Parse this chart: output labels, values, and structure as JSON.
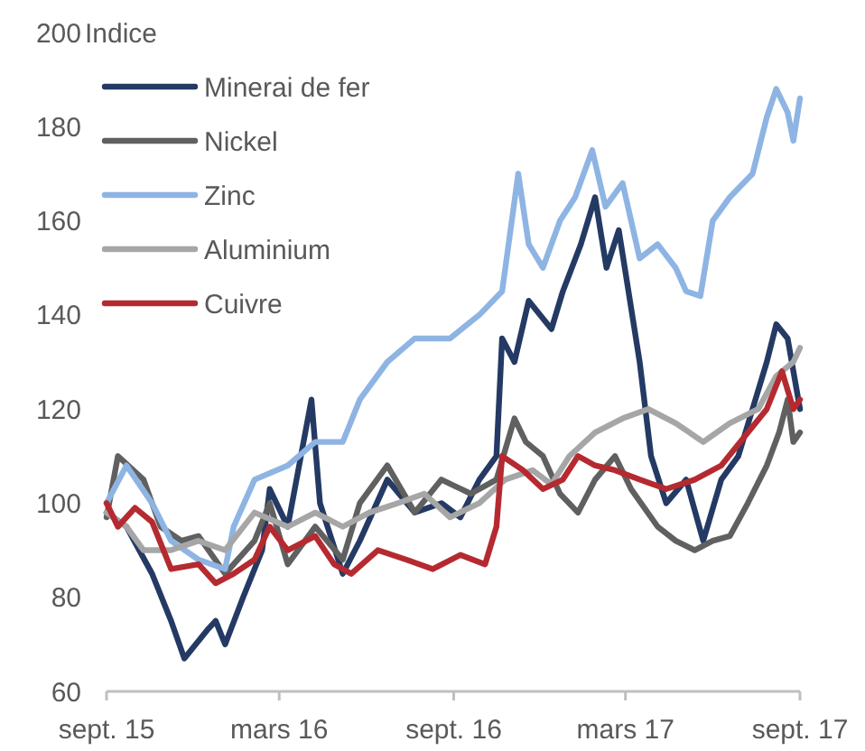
{
  "chart_data": {
    "type": "line",
    "ylabel": "Indice",
    "xlim": [
      "2015-09-01",
      "2017-09-01"
    ],
    "xticks": [
      {
        "value": "2015-09-01",
        "label": "sept. 15"
      },
      {
        "value": "2016-03-01",
        "label": "mars 16"
      },
      {
        "value": "2016-09-01",
        "label": "sept. 16"
      },
      {
        "value": "2017-03-01",
        "label": "mars 17"
      },
      {
        "value": "2017-09-01",
        "label": "sept. 17"
      }
    ],
    "ylim": [
      60,
      200
    ],
    "yticks": [
      60,
      80,
      100,
      120,
      140,
      160,
      180,
      200
    ],
    "grid": false,
    "legend": "top left",
    "line_style": "solid",
    "series": [
      {
        "name": "Minerai de fer",
        "color": "#243a64",
        "x": [
          "2015-09-01",
          "2015-09-22",
          "2015-10-19",
          "2015-11-08",
          "2015-11-22",
          "2015-12-16",
          "2015-12-25",
          "2016-01-04",
          "2016-01-23",
          "2016-02-12",
          "2016-02-20",
          "2016-03-10",
          "2016-04-04",
          "2016-04-13",
          "2016-05-07",
          "2016-05-25",
          "2016-06-23",
          "2016-07-22",
          "2016-08-19",
          "2016-09-08",
          "2016-09-28",
          "2016-10-16",
          "2016-10-22",
          "2016-11-04",
          "2016-11-19",
          "2016-12-13",
          "2016-12-25",
          "2017-01-13",
          "2017-01-28",
          "2017-02-09",
          "2017-02-22",
          "2017-03-16",
          "2017-03-22",
          "2017-03-28",
          "2017-04-13",
          "2017-05-04",
          "2017-05-22",
          "2017-06-10",
          "2017-06-28",
          "2017-07-13",
          "2017-07-28",
          "2017-08-07",
          "2017-08-19",
          "2017-09-01"
        ],
        "values": [
          98,
          95,
          85,
          75,
          67,
          73,
          75,
          70,
          80,
          90,
          103,
          95,
          122,
          100,
          85,
          92,
          105,
          98,
          100,
          97,
          105,
          110,
          135,
          130,
          143,
          137,
          145,
          155,
          165,
          150,
          158,
          130,
          120,
          110,
          100,
          105,
          92,
          105,
          110,
          120,
          130,
          138,
          135,
          120
        ]
      },
      {
        "name": "Nickel",
        "color": "#606060",
        "x": [
          "2015-09-01",
          "2015-09-13",
          "2015-10-10",
          "2015-10-28",
          "2015-11-19",
          "2015-12-07",
          "2016-01-04",
          "2016-02-04",
          "2016-02-20",
          "2016-03-10",
          "2016-04-08",
          "2016-05-07",
          "2016-05-25",
          "2016-06-23",
          "2016-07-22",
          "2016-08-19",
          "2016-09-19",
          "2016-10-16",
          "2016-11-04",
          "2016-11-16",
          "2016-12-04",
          "2016-12-22",
          "2017-01-10",
          "2017-01-28",
          "2017-02-18",
          "2017-03-07",
          "2017-04-04",
          "2017-04-23",
          "2017-05-13",
          "2017-06-01",
          "2017-06-19",
          "2017-07-08",
          "2017-07-28",
          "2017-08-10",
          "2017-08-19",
          "2017-08-25",
          "2017-09-01"
        ],
        "values": [
          97,
          110,
          105,
          95,
          92,
          93,
          85,
          92,
          100,
          87,
          95,
          88,
          100,
          108,
          98,
          105,
          102,
          105,
          118,
          113,
          110,
          102,
          98,
          105,
          110,
          103,
          95,
          92,
          90,
          92,
          93,
          100,
          108,
          115,
          122,
          113,
          115
        ]
      },
      {
        "name": "Zinc",
        "color": "#8eb4e3",
        "x": [
          "2015-09-01",
          "2015-09-22",
          "2015-10-19",
          "2015-11-08",
          "2015-12-07",
          "2016-01-04",
          "2016-01-13",
          "2016-02-04",
          "2016-03-10",
          "2016-04-08",
          "2016-05-07",
          "2016-05-25",
          "2016-06-23",
          "2016-07-22",
          "2016-08-28",
          "2016-09-28",
          "2016-10-22",
          "2016-11-08",
          "2016-11-19",
          "2016-12-04",
          "2016-12-22",
          "2017-01-07",
          "2017-01-25",
          "2017-02-08",
          "2017-02-26",
          "2017-03-16",
          "2017-04-04",
          "2017-04-23",
          "2017-05-04",
          "2017-05-19",
          "2017-06-01",
          "2017-06-19",
          "2017-07-13",
          "2017-07-28",
          "2017-08-07",
          "2017-08-19",
          "2017-08-25",
          "2017-09-01"
        ],
        "values": [
          100,
          108,
          100,
          92,
          88,
          86,
          95,
          105,
          108,
          113,
          113,
          122,
          130,
          135,
          135,
          140,
          145,
          170,
          155,
          150,
          160,
          165,
          175,
          163,
          168,
          152,
          155,
          150,
          145,
          144,
          160,
          165,
          170,
          182,
          188,
          183,
          177,
          186
        ]
      },
      {
        "name": "Aluminium",
        "color": "#a6a6a6",
        "x": [
          "2015-09-01",
          "2015-09-22",
          "2015-10-10",
          "2015-11-08",
          "2015-12-07",
          "2016-01-04",
          "2016-02-04",
          "2016-03-10",
          "2016-04-08",
          "2016-05-07",
          "2016-06-04",
          "2016-07-04",
          "2016-08-01",
          "2016-08-28",
          "2016-09-28",
          "2016-10-25",
          "2016-11-23",
          "2016-12-13",
          "2017-01-01",
          "2017-01-28",
          "2017-02-26",
          "2017-03-25",
          "2017-04-23",
          "2017-05-22",
          "2017-06-19",
          "2017-07-19",
          "2017-08-07",
          "2017-08-25",
          "2017-09-01"
        ],
        "values": [
          98,
          95,
          90,
          90,
          92,
          90,
          98,
          95,
          98,
          95,
          98,
          100,
          102,
          97,
          100,
          105,
          107,
          104,
          110,
          115,
          118,
          120,
          117,
          113,
          117,
          120,
          127,
          130,
          133
        ]
      },
      {
        "name": "Cuivre",
        "color": "#b52a30",
        "x": [
          "2015-09-01",
          "2015-09-13",
          "2015-10-01",
          "2015-10-19",
          "2015-11-08",
          "2015-12-07",
          "2015-12-25",
          "2016-01-13",
          "2016-02-04",
          "2016-02-20",
          "2016-03-10",
          "2016-04-08",
          "2016-04-28",
          "2016-05-16",
          "2016-06-13",
          "2016-07-13",
          "2016-08-10",
          "2016-09-08",
          "2016-10-04",
          "2016-10-16",
          "2016-10-22",
          "2016-11-13",
          "2016-12-04",
          "2016-12-25",
          "2017-01-10",
          "2017-01-28",
          "2017-02-18",
          "2017-03-16",
          "2017-04-13",
          "2017-05-13",
          "2017-06-10",
          "2017-07-08",
          "2017-07-28",
          "2017-08-13",
          "2017-08-25",
          "2017-09-01"
        ],
        "values": [
          100,
          95,
          99,
          96,
          86,
          87,
          83,
          85,
          88,
          95,
          90,
          93,
          87,
          85,
          90,
          88,
          86,
          89,
          87,
          95,
          110,
          107,
          103,
          105,
          110,
          108,
          107,
          105,
          103,
          105,
          108,
          115,
          120,
          128,
          120,
          122
        ]
      }
    ]
  }
}
